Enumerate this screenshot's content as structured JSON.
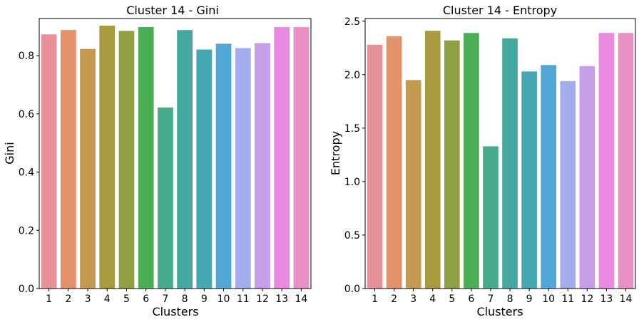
{
  "chart_data": [
    {
      "type": "bar",
      "title": "Cluster 14 - Gini",
      "xlabel": "Clusters",
      "ylabel": "Gini",
      "categories": [
        "1",
        "2",
        "3",
        "4",
        "5",
        "6",
        "7",
        "8",
        "9",
        "10",
        "11",
        "12",
        "13",
        "14"
      ],
      "values": [
        0.873,
        0.888,
        0.823,
        0.903,
        0.885,
        0.898,
        0.622,
        0.888,
        0.821,
        0.841,
        0.826,
        0.843,
        0.898,
        0.898
      ],
      "ylim": [
        0,
        0.9275
      ],
      "yticks": [
        "0.0",
        "0.2",
        "0.4",
        "0.6",
        "0.8"
      ],
      "ytick_values": [
        0,
        0.2,
        0.4,
        0.6,
        0.8
      ],
      "grid": false,
      "colors": [
        "#e8919a",
        "#e3926a",
        "#c49a4e",
        "#a89a3f",
        "#8fa143",
        "#4aae55",
        "#47ab8c",
        "#45a99f",
        "#47a8b3",
        "#51a8d6",
        "#a3acec",
        "#c69ee8",
        "#e78ae0",
        "#e88fc3"
      ]
    },
    {
      "type": "bar",
      "title": "Cluster 14 - Entropy",
      "xlabel": "Clusters",
      "ylabel": "Entropy",
      "categories": [
        "1",
        "2",
        "3",
        "4",
        "5",
        "6",
        "7",
        "8",
        "9",
        "10",
        "11",
        "12",
        "13",
        "14"
      ],
      "values": [
        2.28,
        2.36,
        1.95,
        2.41,
        2.32,
        2.39,
        1.33,
        2.34,
        2.03,
        2.09,
        1.94,
        2.08,
        2.39,
        2.39
      ],
      "ylim": [
        0,
        2.525
      ],
      "yticks": [
        "0.0",
        "0.5",
        "1.0",
        "1.5",
        "2.0",
        "2.5"
      ],
      "ytick_values": [
        0,
        0.5,
        1.0,
        1.5,
        2.0,
        2.5
      ],
      "grid": false,
      "colors": [
        "#e8919a",
        "#e3926a",
        "#c49a4e",
        "#a89a3f",
        "#8fa143",
        "#4aae55",
        "#47ab8c",
        "#45a99f",
        "#47a8b3",
        "#51a8d6",
        "#a3acec",
        "#c69ee8",
        "#e78ae0",
        "#e88fc3"
      ]
    }
  ]
}
